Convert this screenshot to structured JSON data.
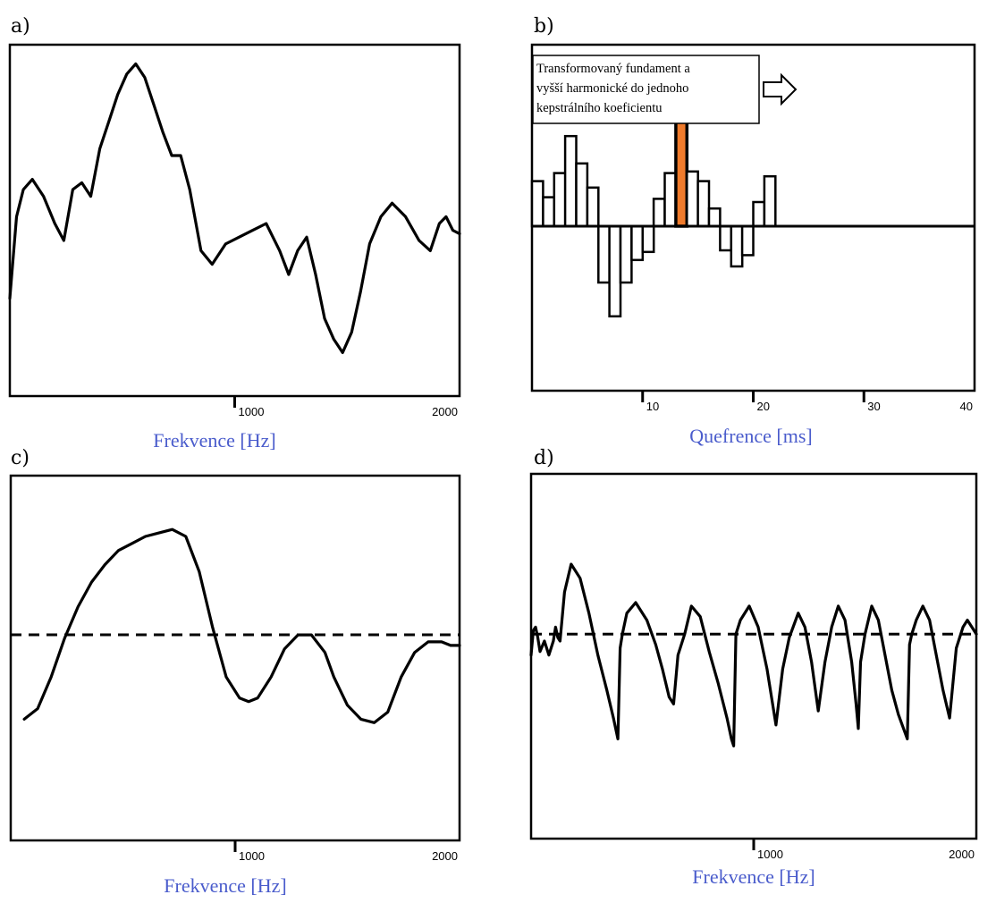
{
  "chart_data": [
    {
      "id": "a",
      "panel_label": "a)",
      "type": "line",
      "xlabel": "Frekvence [Hz]",
      "xlim": [
        0,
        2000
      ],
      "ylim": [
        0,
        1
      ],
      "xticks": [
        1000,
        2000
      ],
      "series": [
        {
          "x": [
            0,
            30,
            60,
            100,
            150,
            200,
            240,
            280,
            320,
            360,
            400,
            440,
            480,
            520,
            560,
            600,
            640,
            680,
            720,
            760,
            800,
            850,
            900,
            960,
            1020,
            1080,
            1140,
            1200,
            1240,
            1280,
            1320,
            1360,
            1400,
            1440,
            1480,
            1520,
            1560,
            1600,
            1650,
            1700,
            1760,
            1820,
            1870,
            1910,
            1940,
            1970,
            2000
          ],
          "y": [
            0.28,
            0.52,
            0.6,
            0.63,
            0.58,
            0.5,
            0.45,
            0.6,
            0.62,
            0.58,
            0.72,
            0.8,
            0.88,
            0.94,
            0.97,
            0.93,
            0.85,
            0.77,
            0.7,
            0.7,
            0.6,
            0.42,
            0.38,
            0.44,
            0.46,
            0.48,
            0.5,
            0.42,
            0.35,
            0.42,
            0.46,
            0.35,
            0.22,
            0.16,
            0.12,
            0.18,
            0.3,
            0.44,
            0.52,
            0.56,
            0.52,
            0.45,
            0.42,
            0.5,
            0.52,
            0.48,
            0.47
          ]
        }
      ]
    },
    {
      "id": "b",
      "panel_label": "b)",
      "type": "bar",
      "xlabel": "Quefrence [ms]",
      "xlim": [
        0,
        40
      ],
      "ylim": [
        -1,
        1.5
      ],
      "xticks": [
        10,
        20,
        30,
        40
      ],
      "categories": [
        "1",
        "2",
        "3",
        "4",
        "5",
        "6",
        "7",
        "8",
        "9",
        "10",
        "11",
        "12",
        "13",
        "14",
        "15",
        "16",
        "17",
        "18",
        "19",
        "20",
        "21",
        "22",
        "23",
        "24",
        "25",
        "26",
        "27",
        "28",
        "29",
        "30",
        "31",
        "32",
        "33",
        "34",
        "35",
        "36",
        "37",
        "38",
        "39",
        "40"
      ],
      "values": [
        0.28,
        0.18,
        0.33,
        0.56,
        0.39,
        0.24,
        -0.35,
        -0.56,
        -0.35,
        -0.21,
        -0.16,
        0.17,
        0.33,
        1.02,
        0.34,
        0.28,
        0.11,
        -0.15,
        -0.25,
        -0.18,
        0.15,
        0.31,
        0.0,
        0.0,
        0.0,
        0.0,
        0.0,
        0.0,
        0.0,
        0.0,
        0.0,
        0.0,
        0.0,
        0.0,
        0.0,
        0.0,
        0.0,
        0.0,
        0.0,
        0.0
      ],
      "highlight_index": 13,
      "highlight_color": "#f07b2c",
      "annotation": [
        "Transformovaný fundament a",
        "vyšší harmonické do jednoho",
        "kepstrálního koeficientu"
      ]
    },
    {
      "id": "c",
      "panel_label": "c)",
      "type": "line",
      "xlabel": "Frekvence [Hz]",
      "xlim": [
        0,
        2000
      ],
      "ylim": [
        0,
        1
      ],
      "xticks": [
        1000,
        2000
      ],
      "reference_line_y": 0.58,
      "series": [
        {
          "x": [
            60,
            120,
            180,
            240,
            300,
            360,
            420,
            480,
            540,
            600,
            660,
            720,
            780,
            840,
            900,
            960,
            1020,
            1060,
            1100,
            1160,
            1220,
            1280,
            1340,
            1400,
            1440,
            1500,
            1560,
            1620,
            1680,
            1740,
            1800,
            1860,
            1920,
            1960,
            2000
          ],
          "y": [
            0.34,
            0.37,
            0.46,
            0.57,
            0.66,
            0.73,
            0.78,
            0.82,
            0.84,
            0.86,
            0.87,
            0.88,
            0.86,
            0.76,
            0.6,
            0.46,
            0.4,
            0.39,
            0.4,
            0.46,
            0.54,
            0.58,
            0.58,
            0.53,
            0.46,
            0.38,
            0.34,
            0.33,
            0.36,
            0.46,
            0.53,
            0.56,
            0.56,
            0.55,
            0.55
          ]
        }
      ]
    },
    {
      "id": "d",
      "panel_label": "d)",
      "type": "line",
      "xlabel": "Frekvence [Hz]",
      "xlim": [
        0,
        2000
      ],
      "ylim": [
        0,
        1
      ],
      "xticks": [
        1000,
        2000
      ],
      "reference_line_y": 0.58,
      "series": [
        {
          "x": [
            0,
            10,
            20,
            30,
            40,
            60,
            80,
            100,
            110,
            120,
            130,
            150,
            180,
            220,
            260,
            300,
            340,
            370,
            390,
            400,
            410,
            430,
            470,
            520,
            560,
            590,
            620,
            640,
            660,
            690,
            720,
            760,
            800,
            840,
            880,
            900,
            910,
            920,
            940,
            980,
            1020,
            1060,
            1080,
            1100,
            1130,
            1160,
            1200,
            1230,
            1260,
            1290,
            1320,
            1350,
            1380,
            1410,
            1440,
            1460,
            1470,
            1480,
            1500,
            1530,
            1560,
            1590,
            1620,
            1650,
            1690,
            1700,
            1710,
            1730,
            1760,
            1790,
            1820,
            1850,
            1880,
            1910,
            1940,
            1960,
            1980,
            2000
          ],
          "y": [
            0.52,
            0.59,
            0.6,
            0.57,
            0.53,
            0.56,
            0.52,
            0.56,
            0.6,
            0.57,
            0.56,
            0.7,
            0.78,
            0.74,
            0.64,
            0.52,
            0.42,
            0.34,
            0.28,
            0.54,
            0.58,
            0.64,
            0.67,
            0.62,
            0.55,
            0.48,
            0.4,
            0.38,
            0.52,
            0.58,
            0.66,
            0.63,
            0.53,
            0.44,
            0.34,
            0.28,
            0.26,
            0.58,
            0.62,
            0.66,
            0.6,
            0.48,
            0.4,
            0.32,
            0.48,
            0.57,
            0.64,
            0.6,
            0.5,
            0.36,
            0.5,
            0.6,
            0.66,
            0.62,
            0.5,
            0.38,
            0.31,
            0.5,
            0.58,
            0.66,
            0.62,
            0.52,
            0.42,
            0.35,
            0.28,
            0.55,
            0.58,
            0.62,
            0.66,
            0.62,
            0.52,
            0.42,
            0.34,
            0.54,
            0.6,
            0.62,
            0.6,
            0.58
          ]
        }
      ]
    }
  ]
}
